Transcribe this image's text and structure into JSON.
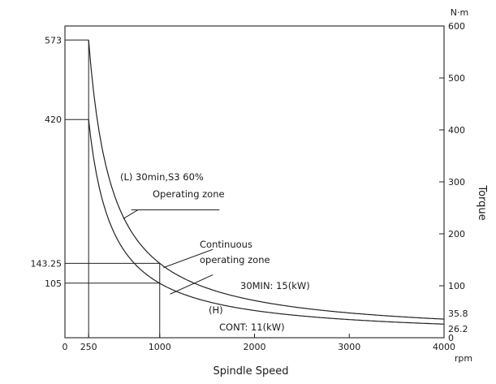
{
  "chart_data": {
    "type": "line",
    "xlabel": "Spindle Speed",
    "x_unit": "rpm",
    "ylabel": "Torque",
    "y_unit": "N·m",
    "xlim": [
      0,
      4000
    ],
    "ylim": [
      0,
      600
    ],
    "x_ticks": [
      0,
      250,
      1000,
      2000,
      3000,
      4000
    ],
    "x_tick_labels": [
      "0",
      "250",
      "1000",
      "2000",
      "3000",
      "4000"
    ],
    "y_ticks_right": [
      0,
      100,
      200,
      300,
      400,
      500,
      600
    ],
    "y_tick_labels_right": [
      "0",
      "100",
      "200",
      "300",
      "400",
      "500",
      "600"
    ],
    "left_value_labels": [
      "573",
      "420",
      "143.25",
      "105"
    ],
    "right_value_labels": [
      "35.8",
      "26.2"
    ],
    "series": [
      {
        "name": "30min,S3 60%",
        "x": [
          250,
          300,
          400,
          500,
          600,
          800,
          1000,
          1500,
          2000,
          2500,
          3000,
          3500,
          4000
        ],
        "y": [
          573,
          573,
          358,
          286.5,
          238.8,
          179.1,
          143.25,
          95.5,
          71.6,
          57.3,
          47.8,
          40.9,
          35.8
        ]
      },
      {
        "name": "CONT",
        "x": [
          250,
          300,
          400,
          500,
          600,
          800,
          1000,
          1500,
          2000,
          2500,
          3000,
          3500,
          4000
        ],
        "y": [
          420,
          350,
          262.5,
          210,
          175,
          131.25,
          105,
          70,
          52.5,
          42,
          35,
          30,
          26.2
        ]
      }
    ],
    "reference_lines": [
      {
        "kind": "h",
        "y": 573,
        "x_from": 0,
        "x_to": 250
      },
      {
        "kind": "h",
        "y": 420,
        "x_from": 0,
        "x_to": 250
      },
      {
        "kind": "h",
        "y": 143.25,
        "x_from": 0,
        "x_to": 1000
      },
      {
        "kind": "h",
        "y": 105,
        "x_from": 0,
        "x_to": 1000
      },
      {
        "kind": "v",
        "x": 250,
        "y_from": 0,
        "y_to": 573
      },
      {
        "kind": "v",
        "x": 1000,
        "y_from": 0,
        "y_to": 143.25
      }
    ],
    "annotations": {
      "zone_l": "(L)   30min,S3  60%",
      "zone_l_2": "Operating  zone",
      "zone_cont": "Continuous",
      "zone_cont_2": "operating  zone",
      "power_30": "30MIN:  15(kW)",
      "power_cont_h": "(H)",
      "power_cont": "CONT:  11(kW)"
    }
  }
}
